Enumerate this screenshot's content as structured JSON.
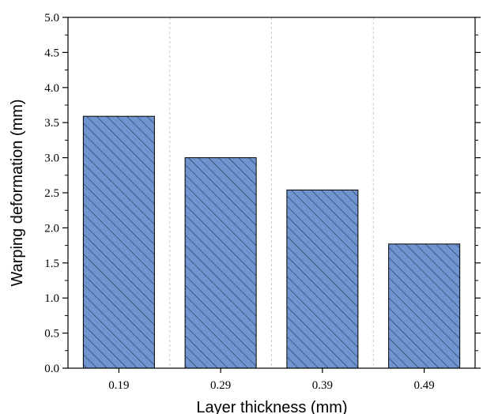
{
  "chart_data": {
    "type": "bar",
    "categories": [
      "0.19",
      "0.29",
      "0.39",
      "0.49"
    ],
    "values": [
      3.59,
      3.0,
      2.54,
      1.77
    ],
    "xlabel": "Layer thickness (mm)",
    "ylabel": "Warping deformation (mm)",
    "ylim": [
      0,
      5.0
    ],
    "y_ticks": [
      "0.0",
      "0.5",
      "1.0",
      "1.5",
      "2.0",
      "2.5",
      "3.0",
      "3.5",
      "4.0",
      "4.5",
      "5.0"
    ],
    "grid": true,
    "colors": {
      "bar_fill": "#6f94d0",
      "hatch": "#1f2a3f",
      "edge": "#000000",
      "grid": "#c8c8c8"
    }
  }
}
